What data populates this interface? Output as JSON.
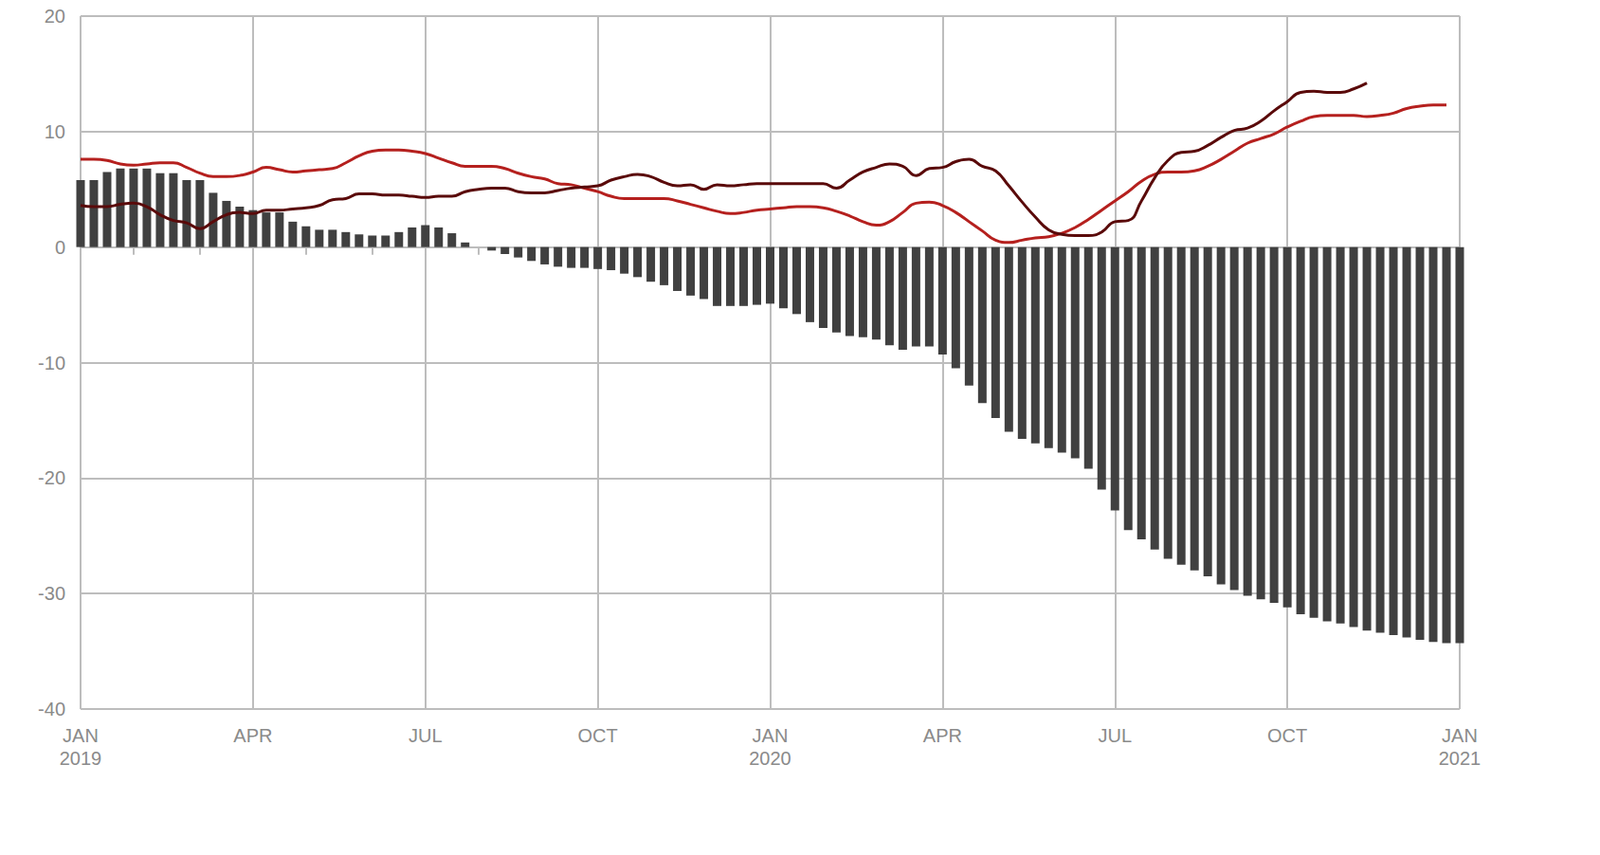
{
  "chart_data": {
    "type": "bar",
    "categories": [
      "JAN 2019",
      null,
      null,
      null,
      null,
      null,
      null,
      null,
      null,
      null,
      null,
      null,
      null,
      "APR",
      null,
      null,
      null,
      null,
      null,
      null,
      null,
      null,
      null,
      null,
      null,
      null,
      "JUL",
      null,
      null,
      null,
      null,
      null,
      null,
      null,
      null,
      null,
      null,
      null,
      null,
      "OCT",
      null,
      null,
      null,
      null,
      null,
      null,
      null,
      null,
      null,
      null,
      null,
      null,
      "JAN 2020",
      null,
      null,
      null,
      null,
      null,
      null,
      null,
      null,
      null,
      null,
      null,
      null,
      "APR",
      null,
      null,
      null,
      null,
      null,
      null,
      null,
      null,
      null,
      null,
      null,
      null,
      "JUL",
      null,
      null,
      null,
      null,
      null,
      null,
      null,
      null,
      null,
      null,
      null,
      null,
      "OCT",
      null,
      null,
      null,
      null,
      null,
      null,
      null,
      null,
      null,
      null,
      null,
      null,
      "JAN 2021"
    ],
    "series": [
      {
        "type": "bar",
        "color": "#404040",
        "values": [
          5.8,
          5.8,
          6.5,
          6.8,
          6.8,
          6.8,
          6.4,
          6.4,
          5.8,
          5.8,
          4.7,
          4.0,
          3.5,
          3.2,
          3.0,
          3.0,
          2.2,
          1.8,
          1.5,
          1.5,
          1.3,
          1.1,
          1.0,
          1.0,
          1.3,
          1.7,
          1.9,
          1.7,
          1.2,
          0.4,
          0,
          -0.3,
          -0.6,
          -0.9,
          -1.2,
          -1.5,
          -1.7,
          -1.8,
          -1.8,
          -1.9,
          -2.0,
          -2.3,
          -2.6,
          -3.0,
          -3.3,
          -3.8,
          -4.2,
          -4.5,
          -5.1,
          -5.1,
          -5.1,
          -5.0,
          -4.9,
          -5.3,
          -5.8,
          -6.5,
          -7.0,
          -7.4,
          -7.7,
          -7.8,
          -8.0,
          -8.5,
          -8.9,
          -8.6,
          -8.6,
          -9.3,
          -10.5,
          -12.0,
          -13.5,
          -14.8,
          -16.0,
          -16.6,
          -17.0,
          -17.4,
          -17.8,
          -18.3,
          -19.2,
          -21.0,
          -22.8,
          -24.5,
          -25.3,
          -26.2,
          -27.0,
          -27.5,
          -28.0,
          -28.5,
          -29.2,
          -29.7,
          -30.2,
          -30.5,
          -30.8,
          -31.2,
          -31.8,
          -32.1,
          -32.4,
          -32.6,
          -32.9,
          -33.2,
          -33.4,
          -33.6,
          -33.8,
          -34.0,
          -34.2,
          -34.3,
          -34.3
        ]
      },
      {
        "type": "line",
        "color": "#b5201e",
        "values": [
          7.6,
          7.6,
          7.5,
          7.2,
          7.1,
          7.2,
          7.3,
          7.3,
          6.9,
          6.4,
          6.1,
          6.1,
          6.2,
          6.5,
          6.9,
          6.7,
          6.5,
          6.6,
          6.7,
          6.8,
          7.3,
          7.9,
          8.3,
          8.4,
          8.4,
          8.3,
          8.1,
          7.7,
          7.3,
          7.0,
          7.0,
          7.0,
          6.8,
          6.4,
          6.1,
          5.9,
          5.5,
          5.4,
          5.1,
          4.8,
          4.4,
          4.2,
          4.2,
          4.2,
          4.2,
          4.0,
          3.7,
          3.4,
          3.1,
          2.9,
          3.0,
          3.2,
          3.3,
          3.4,
          3.5,
          3.5,
          3.4,
          3.1,
          2.7,
          2.2,
          1.9,
          2.2,
          3.0,
          3.8,
          3.9,
          3.6,
          3.0,
          2.2,
          1.4,
          0.6,
          0.4,
          0.6,
          0.8,
          0.9,
          1.2,
          1.7,
          2.4,
          3.2,
          4.0,
          4.8,
          5.7,
          6.3,
          6.5,
          6.5,
          6.6,
          7.0,
          7.6,
          8.3,
          9.0,
          9.4,
          9.8,
          10.4,
          10.9,
          11.3,
          11.4,
          11.4,
          11.4,
          11.3,
          11.4,
          11.6,
          12.0,
          12.2,
          12.3,
          12.3,
          null
        ]
      },
      {
        "type": "line",
        "color": "#5a0a0a",
        "values": [
          3.6,
          3.5,
          3.5,
          3.7,
          3.8,
          3.5,
          2.8,
          2.3,
          2.1,
          1.6,
          2.2,
          2.8,
          3.0,
          2.9,
          3.2,
          3.2,
          3.3,
          3.4,
          3.6,
          4.1,
          4.2,
          4.6,
          4.6,
          4.5,
          4.5,
          4.4,
          4.3,
          4.4,
          4.4,
          4.8,
          5.0,
          5.1,
          5.1,
          4.8,
          4.7,
          4.7,
          4.9,
          5.1,
          5.2,
          5.3,
          5.8,
          6.1,
          6.3,
          6.1,
          5.6,
          5.3,
          5.4,
          5.0,
          5.4,
          5.3,
          5.4,
          5.5,
          5.5,
          5.5,
          5.5,
          5.5,
          5.5,
          5.1,
          5.8,
          6.5,
          6.9,
          7.2,
          7.0,
          6.2,
          6.8,
          6.9,
          7.4,
          7.6,
          7.0,
          6.6,
          5.3,
          3.9,
          2.6,
          1.5,
          1.1,
          1.0,
          1.0,
          1.3,
          2.2,
          2.3,
          4.0,
          6.0,
          7.5,
          8.2,
          8.3,
          8.8,
          9.5,
          10.1,
          10.3,
          10.9,
          11.8,
          12.6,
          13.4,
          13.5,
          13.4,
          13.4,
          13.7,
          14.2,
          null,
          null,
          null,
          null,
          null,
          null,
          null
        ]
      }
    ],
    "ylim": [
      -40,
      20
    ],
    "yticks": [
      -40,
      -30,
      -20,
      -10,
      0,
      10,
      20
    ],
    "grid": true
  }
}
